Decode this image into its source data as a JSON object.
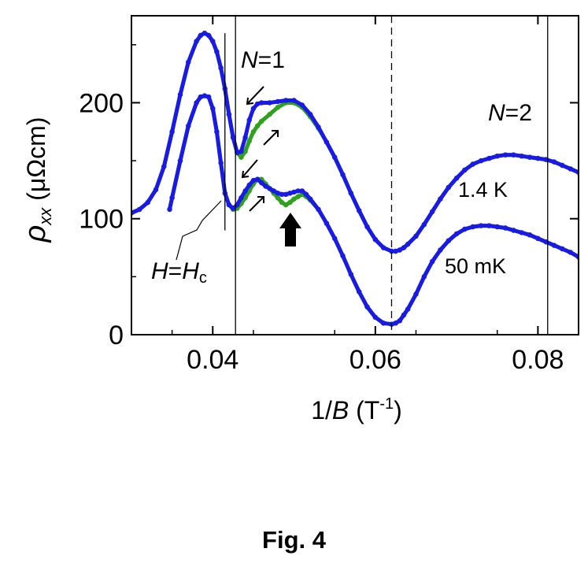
{
  "chart_data": {
    "type": "line",
    "xlabel": "1/B (T-1)",
    "xlabel_parts": {
      "prefix": "1/",
      "var": "B",
      "open": " (T",
      "sup": "-1",
      "close": ")"
    },
    "ylabel": "ρxx (μΩcm)",
    "ylabel_parts": {
      "sym": "ρ",
      "sub": "xx",
      "unit": " (μΩcm)"
    },
    "xlim": [
      0.03,
      0.085
    ],
    "ylim": [
      0,
      275
    ],
    "xticks": [
      0.04,
      0.06,
      0.08
    ],
    "xtick_labels": [
      "0.04",
      "0.06",
      "0.08"
    ],
    "yticks": [
      0,
      100,
      200
    ],
    "ytick_labels": [
      "0",
      "100",
      "200"
    ],
    "vlines": [
      {
        "x": 0.0415,
        "ymin": 90,
        "ymax": 260,
        "style": "solid"
      },
      {
        "x": 0.0428,
        "ymin": 0,
        "ymax": 275,
        "style": "solid"
      },
      {
        "x": 0.062,
        "ymin": 0,
        "ymax": 275,
        "style": "dashed"
      },
      {
        "x": 0.0812,
        "ymin": 0,
        "ymax": 275,
        "style": "solid"
      }
    ],
    "series": [
      {
        "name": "1.4 K",
        "color": "#2ea11e",
        "x": [
          0.03,
          0.031,
          0.032,
          0.033,
          0.034,
          0.035,
          0.036,
          0.037,
          0.038,
          0.0385,
          0.039,
          0.0395,
          0.04,
          0.0405,
          0.041,
          0.0415,
          0.042,
          0.0425,
          0.043,
          0.0435,
          0.044,
          0.0445,
          0.045,
          0.0455,
          0.046,
          0.047,
          0.048,
          0.049,
          0.05,
          0.051,
          0.052,
          0.053,
          0.054,
          0.055,
          0.056,
          0.057,
          0.058,
          0.059,
          0.06,
          0.061,
          0.062,
          0.0625,
          0.063,
          0.0635,
          0.064,
          0.065,
          0.066,
          0.067,
          0.068,
          0.069,
          0.07,
          0.071,
          0.072,
          0.073,
          0.074,
          0.075,
          0.076,
          0.077,
          0.078,
          0.079,
          0.08,
          0.081,
          0.082,
          0.083,
          0.084,
          0.085
        ],
        "y": [
          105,
          108,
          114,
          125,
          145,
          175,
          207,
          235,
          253,
          258,
          260,
          258,
          253,
          244,
          230,
          212,
          190,
          170,
          157,
          153,
          158,
          167,
          175,
          180,
          184,
          190,
          196,
          200,
          200,
          196,
          188,
          178,
          166,
          153,
          138,
          122,
          107,
          93,
          82,
          75,
          72,
          72,
          73,
          75,
          78,
          85,
          95,
          106,
          117,
          127,
          135,
          142,
          147,
          150,
          152,
          154,
          155,
          155,
          154,
          153,
          152,
          151,
          149,
          146,
          143,
          140
        ]
      },
      {
        "name": "50 mK",
        "color": "#2ea11e",
        "x": [
          0.0347,
          0.035,
          0.036,
          0.037,
          0.038,
          0.0385,
          0.039,
          0.0395,
          0.04,
          0.0405,
          0.041,
          0.0415,
          0.042,
          0.0425,
          0.043,
          0.0435,
          0.044,
          0.0445,
          0.045,
          0.0455,
          0.046,
          0.0465,
          0.047,
          0.0475,
          0.048,
          0.0485,
          0.049,
          0.0495,
          0.05,
          0.0505,
          0.051,
          0.0515,
          0.052,
          0.053,
          0.054,
          0.055,
          0.056,
          0.057,
          0.058,
          0.059,
          0.06,
          0.061,
          0.062,
          0.0625,
          0.063,
          0.0635,
          0.064,
          0.065,
          0.066,
          0.067,
          0.068,
          0.069,
          0.07,
          0.071,
          0.072,
          0.073,
          0.074,
          0.075,
          0.076,
          0.077,
          0.078,
          0.079,
          0.08,
          0.081,
          0.082,
          0.083,
          0.084,
          0.085
        ],
        "y": [
          108,
          118,
          150,
          180,
          200,
          205,
          206,
          205,
          195,
          175,
          148,
          122,
          112,
          108,
          109,
          113,
          118,
          124,
          130,
          134,
          134,
          130,
          126,
          122,
          118,
          114,
          112,
          114,
          117,
          119,
          121,
          119,
          116,
          108,
          96,
          83,
          68,
          52,
          37,
          24,
          15,
          10,
          9,
          10,
          12,
          17,
          22,
          35,
          50,
          63,
          73,
          81,
          87,
          91,
          93,
          94,
          94,
          93,
          92,
          90,
          88,
          86,
          83,
          80,
          77,
          74,
          71,
          67
        ]
      },
      {
        "name": "1.4 K",
        "color": "#1a1ae6",
        "x": [
          0.03,
          0.031,
          0.032,
          0.033,
          0.034,
          0.035,
          0.036,
          0.037,
          0.038,
          0.0385,
          0.039,
          0.0395,
          0.04,
          0.0405,
          0.041,
          0.0415,
          0.042,
          0.0425,
          0.043,
          0.0435,
          0.044,
          0.0445,
          0.045,
          0.0455,
          0.046,
          0.047,
          0.048,
          0.049,
          0.05,
          0.051,
          0.052,
          0.053,
          0.054,
          0.055,
          0.056,
          0.057,
          0.058,
          0.059,
          0.06,
          0.061,
          0.062,
          0.0625,
          0.063,
          0.0635,
          0.064,
          0.065,
          0.066,
          0.067,
          0.068,
          0.069,
          0.07,
          0.071,
          0.072,
          0.073,
          0.074,
          0.075,
          0.076,
          0.077,
          0.078,
          0.079,
          0.08,
          0.081,
          0.082,
          0.083,
          0.084,
          0.085
        ],
        "y": [
          105,
          108,
          114,
          125,
          145,
          175,
          207,
          235,
          253,
          258,
          260,
          258,
          253,
          244,
          230,
          212,
          190,
          170,
          157,
          158,
          170,
          185,
          195,
          199,
          200,
          200,
          201,
          202,
          202,
          198,
          190,
          179,
          166,
          153,
          138,
          122,
          107,
          93,
          82,
          75,
          72,
          72,
          73,
          75,
          78,
          85,
          95,
          106,
          117,
          127,
          135,
          142,
          147,
          150,
          152,
          154,
          155,
          155,
          154,
          153,
          152,
          151,
          149,
          146,
          143,
          140
        ]
      },
      {
        "name": "50 mK",
        "color": "#1a1ae6",
        "x": [
          0.0347,
          0.035,
          0.036,
          0.037,
          0.038,
          0.0385,
          0.039,
          0.0395,
          0.04,
          0.0405,
          0.041,
          0.0415,
          0.042,
          0.0425,
          0.043,
          0.0435,
          0.044,
          0.0445,
          0.045,
          0.0455,
          0.046,
          0.0465,
          0.047,
          0.0475,
          0.048,
          0.0485,
          0.049,
          0.0495,
          0.05,
          0.0505,
          0.051,
          0.0515,
          0.052,
          0.053,
          0.054,
          0.055,
          0.056,
          0.057,
          0.058,
          0.059,
          0.06,
          0.061,
          0.062,
          0.0625,
          0.063,
          0.0635,
          0.064,
          0.065,
          0.066,
          0.067,
          0.068,
          0.069,
          0.07,
          0.071,
          0.072,
          0.073,
          0.074,
          0.075,
          0.076,
          0.077,
          0.078,
          0.079,
          0.08,
          0.081,
          0.082,
          0.083,
          0.084,
          0.085
        ],
        "y": [
          108,
          118,
          150,
          180,
          200,
          205,
          206,
          205,
          195,
          175,
          148,
          122,
          112,
          109,
          112,
          118,
          124,
          129,
          133,
          134,
          131,
          128,
          126,
          124,
          122,
          121,
          121,
          122,
          123,
          124,
          124,
          121,
          117,
          108,
          96,
          83,
          68,
          52,
          37,
          24,
          15,
          10,
          9,
          10,
          12,
          17,
          22,
          35,
          50,
          63,
          73,
          81,
          87,
          91,
          93,
          94,
          94,
          93,
          92,
          90,
          88,
          86,
          83,
          80,
          77,
          74,
          71,
          67
        ]
      }
    ],
    "annotations": {
      "n1": {
        "sym": "N",
        "rest": "=1"
      },
      "n2": {
        "sym": "N",
        "rest": "=2"
      },
      "temp_high": "1.4 K",
      "temp_low": "50 mK",
      "hc": {
        "h": "H",
        "eq": "=",
        "h2": "H",
        "sub": "c"
      }
    }
  },
  "figure_label": "Fig. 4"
}
